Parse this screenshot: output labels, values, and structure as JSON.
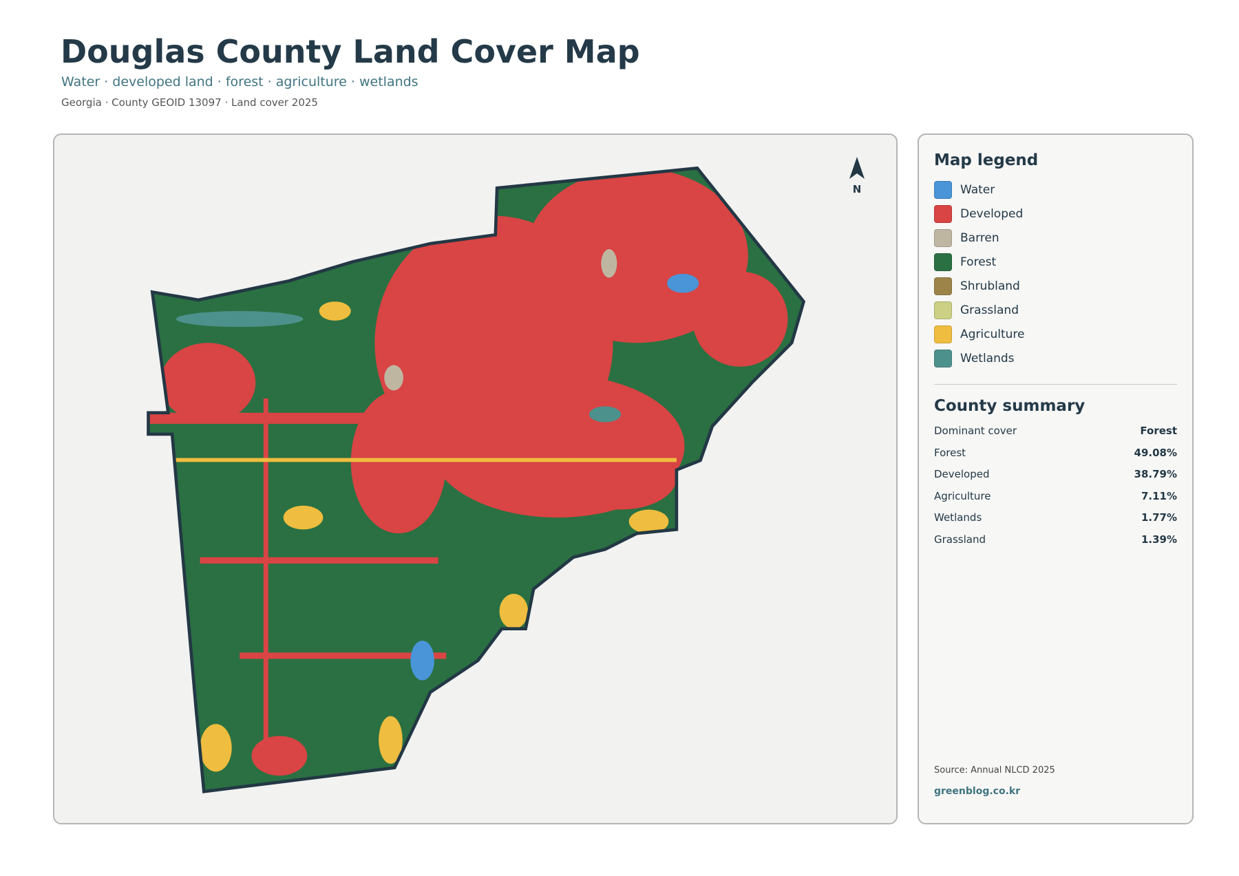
{
  "header": {
    "title": "Douglas County Land Cover Map",
    "subtitle": "Water · developed land · forest · agriculture · wetlands",
    "meta": "Georgia · County GEOID 13097 · Land cover 2025"
  },
  "map": {
    "north": "N"
  },
  "legend": {
    "title": "Map legend",
    "items": [
      {
        "label": "Water",
        "color": "#4a95d8"
      },
      {
        "label": "Developed",
        "color": "#d94444"
      },
      {
        "label": "Barren",
        "color": "#bfb6a2"
      },
      {
        "label": "Forest",
        "color": "#2a7042"
      },
      {
        "label": "Shrubland",
        "color": "#9c8448"
      },
      {
        "label": "Grassland",
        "color": "#cbd084"
      },
      {
        "label": "Agriculture",
        "color": "#efbd3f"
      },
      {
        "label": "Wetlands",
        "color": "#4d918c"
      }
    ]
  },
  "summary": {
    "title": "County summary",
    "rows": [
      [
        "Dominant cover",
        "Forest"
      ],
      [
        "Forest",
        "49.08%"
      ],
      [
        "Developed",
        "38.79%"
      ],
      [
        "Agriculture",
        "7.11%"
      ],
      [
        "Wetlands",
        "1.77%"
      ],
      [
        "Grassland",
        "1.39%"
      ]
    ]
  },
  "footer": {
    "source": "Source: Annual NLCD 2025",
    "credit": "greenblog.co.kr"
  }
}
